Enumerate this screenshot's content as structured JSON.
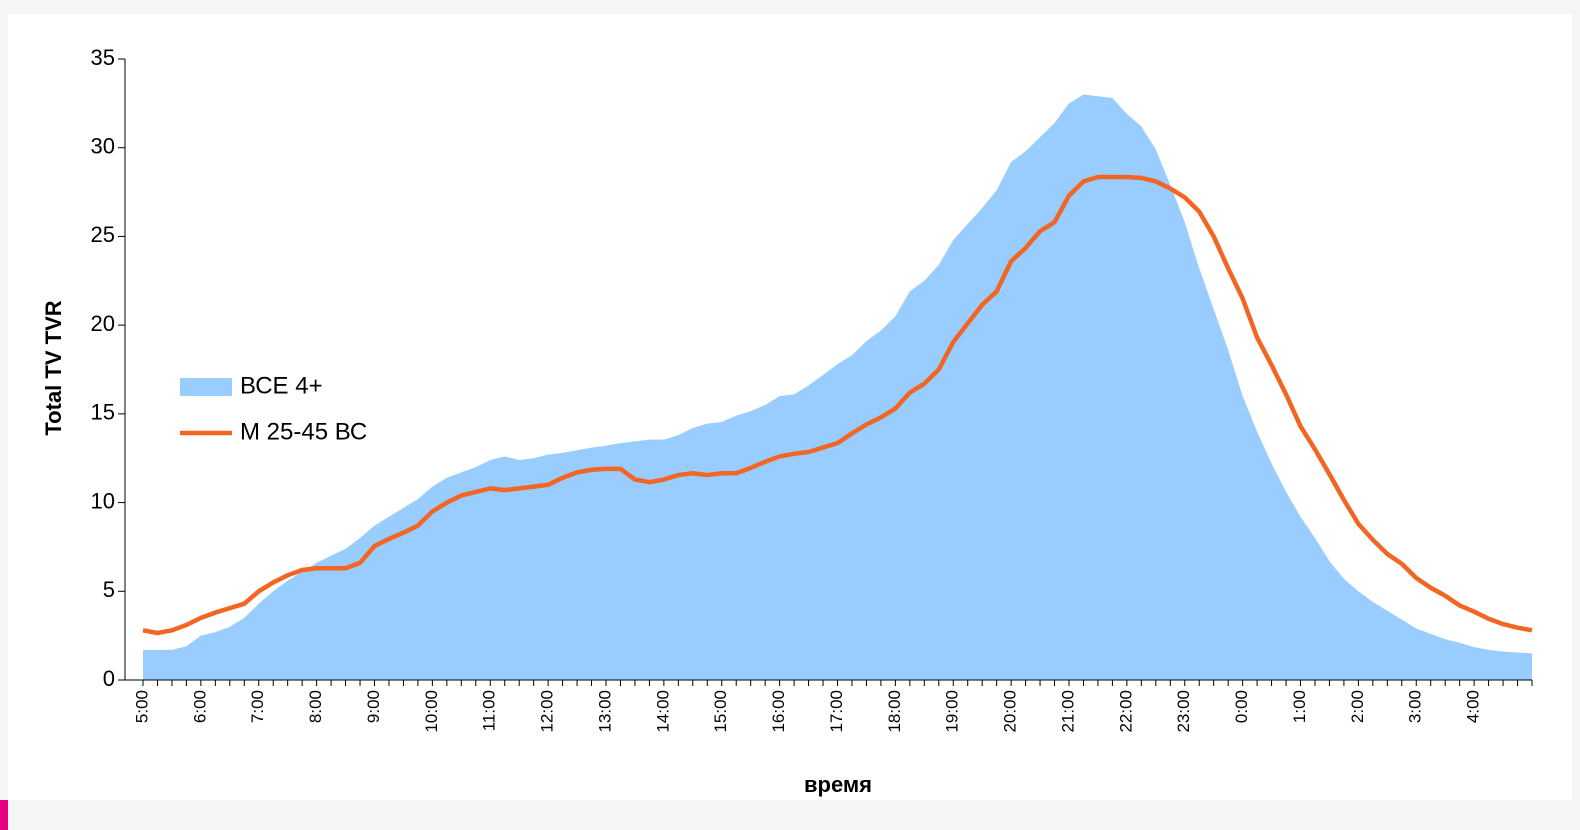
{
  "chart_data": {
    "type": "area-line",
    "ylabel": "Total TV TVR",
    "xlabel": "время",
    "categories": [
      "5:00",
      null,
      null,
      null,
      "6:00",
      null,
      null,
      null,
      "7:00",
      null,
      null,
      null,
      "8:00",
      null,
      null,
      null,
      "9:00",
      null,
      null,
      null,
      "10:00",
      null,
      null,
      null,
      "11:00",
      null,
      null,
      null,
      "12:00",
      null,
      null,
      null,
      "13:00",
      null,
      null,
      null,
      "14:00",
      null,
      null,
      null,
      "15:00",
      null,
      null,
      null,
      "16:00",
      null,
      null,
      null,
      "17:00",
      null,
      null,
      null,
      "18:00",
      null,
      null,
      null,
      "19:00",
      null,
      null,
      null,
      "20:00",
      null,
      null,
      null,
      "21:00",
      null,
      null,
      null,
      "22:00",
      null,
      null,
      null,
      "23:00",
      null,
      null,
      null,
      "0:00",
      null,
      null,
      null,
      "1:00",
      null,
      null,
      null,
      "2:00",
      null,
      null,
      null,
      "3:00",
      null,
      null,
      null,
      "4:00",
      null,
      null,
      null,
      null
    ],
    "series": [
      {
        "name": "ВСЕ 4+",
        "type": "area",
        "color": "#99ccff",
        "values": [
          1.7,
          1.7,
          1.7,
          1.9,
          2.5,
          2.7,
          3.0,
          3.5,
          4.3,
          5.0,
          5.6,
          6.1,
          6.6,
          7.0,
          7.4,
          8.0,
          8.7,
          9.2,
          9.7,
          10.2,
          10.9,
          11.4,
          11.7,
          12.0,
          12.4,
          12.6,
          12.4,
          12.5,
          12.7,
          12.8,
          12.95,
          13.1,
          13.2,
          13.35,
          13.45,
          13.55,
          13.55,
          13.8,
          14.2,
          14.45,
          14.55,
          14.9,
          15.15,
          15.5,
          16.0,
          16.1,
          16.6,
          17.2,
          17.8,
          18.3,
          19.1,
          19.7,
          20.5,
          21.9,
          22.5,
          23.4,
          24.8,
          25.7,
          26.6,
          27.6,
          29.2,
          29.8,
          30.6,
          31.4,
          32.5,
          33.0,
          32.9,
          32.8,
          31.9,
          31.2,
          29.9,
          27.9,
          25.8,
          23.2,
          20.9,
          18.6,
          16.0,
          14.0,
          12.2,
          10.6,
          9.2,
          8.0,
          6.7,
          5.7,
          5.0,
          4.4,
          3.9,
          3.4,
          2.9,
          2.6,
          2.3,
          2.1,
          1.85,
          1.7,
          1.6,
          1.55,
          1.5
        ]
      },
      {
        "name": "М 25-45 ВС",
        "type": "line",
        "color": "#f26522",
        "values": [
          2.8,
          2.65,
          2.8,
          3.1,
          3.5,
          3.8,
          4.05,
          4.3,
          5.0,
          5.5,
          5.9,
          6.2,
          6.3,
          6.3,
          6.3,
          6.6,
          7.55,
          7.95,
          8.3,
          8.7,
          9.5,
          10.0,
          10.4,
          10.6,
          10.8,
          10.7,
          10.8,
          10.9,
          11.0,
          11.4,
          11.7,
          11.85,
          11.9,
          11.9,
          11.3,
          11.15,
          11.3,
          11.55,
          11.65,
          11.55,
          11.65,
          11.65,
          11.95,
          12.3,
          12.6,
          12.75,
          12.85,
          13.1,
          13.35,
          13.9,
          14.4,
          14.8,
          15.3,
          16.2,
          16.7,
          17.5,
          19.05,
          20.1,
          21.15,
          21.9,
          23.6,
          24.35,
          25.3,
          25.8,
          27.3,
          28.1,
          28.35,
          28.35,
          28.35,
          28.3,
          28.1,
          27.7,
          27.2,
          26.4,
          25.0,
          23.2,
          21.5,
          19.3,
          17.75,
          16.1,
          14.3,
          13.0,
          11.6,
          10.15,
          8.8,
          7.9,
          7.1,
          6.55,
          5.75,
          5.2,
          4.75,
          4.2,
          3.85,
          3.45,
          3.15,
          2.95,
          2.8
        ]
      }
    ],
    "ylim": [
      0,
      35
    ],
    "yticks": [
      0,
      5,
      10,
      15,
      20,
      25,
      30,
      35
    ]
  }
}
